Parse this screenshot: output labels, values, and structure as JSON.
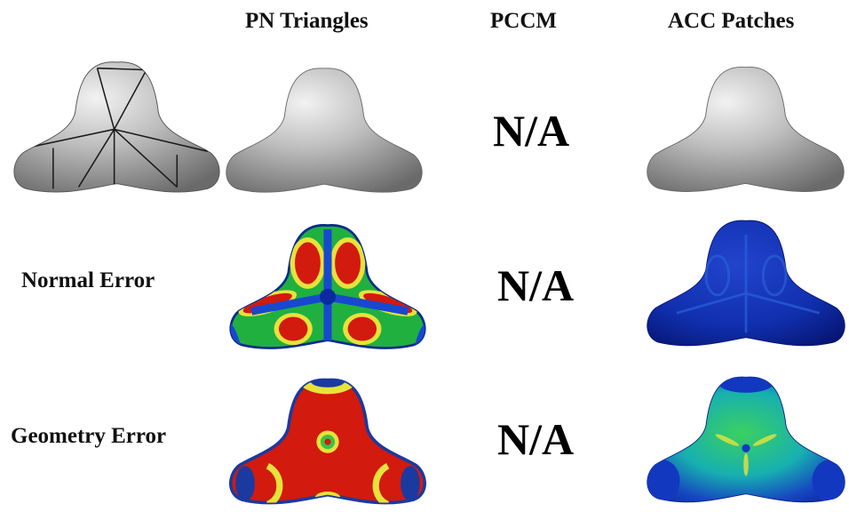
{
  "columns": {
    "pn_triangles": "PN Triangles",
    "pccm": "PCCM",
    "acc_patches": "ACC Patches"
  },
  "rows": {
    "normal_error": "Normal Error",
    "geometry_error": "Geometry Error"
  },
  "na_text": "N/A",
  "colors": {
    "gray_light": "#efefef",
    "gray_mid": "#b9b9b9",
    "gray_dark": "#6f6f6f",
    "err_red": "#d21a0e",
    "err_yellow": "#e8e23a",
    "err_green": "#3cc04a",
    "err_cyan": "#18b6c8",
    "err_blue": "#1234b4",
    "err_deep_blue": "#081a78"
  }
}
